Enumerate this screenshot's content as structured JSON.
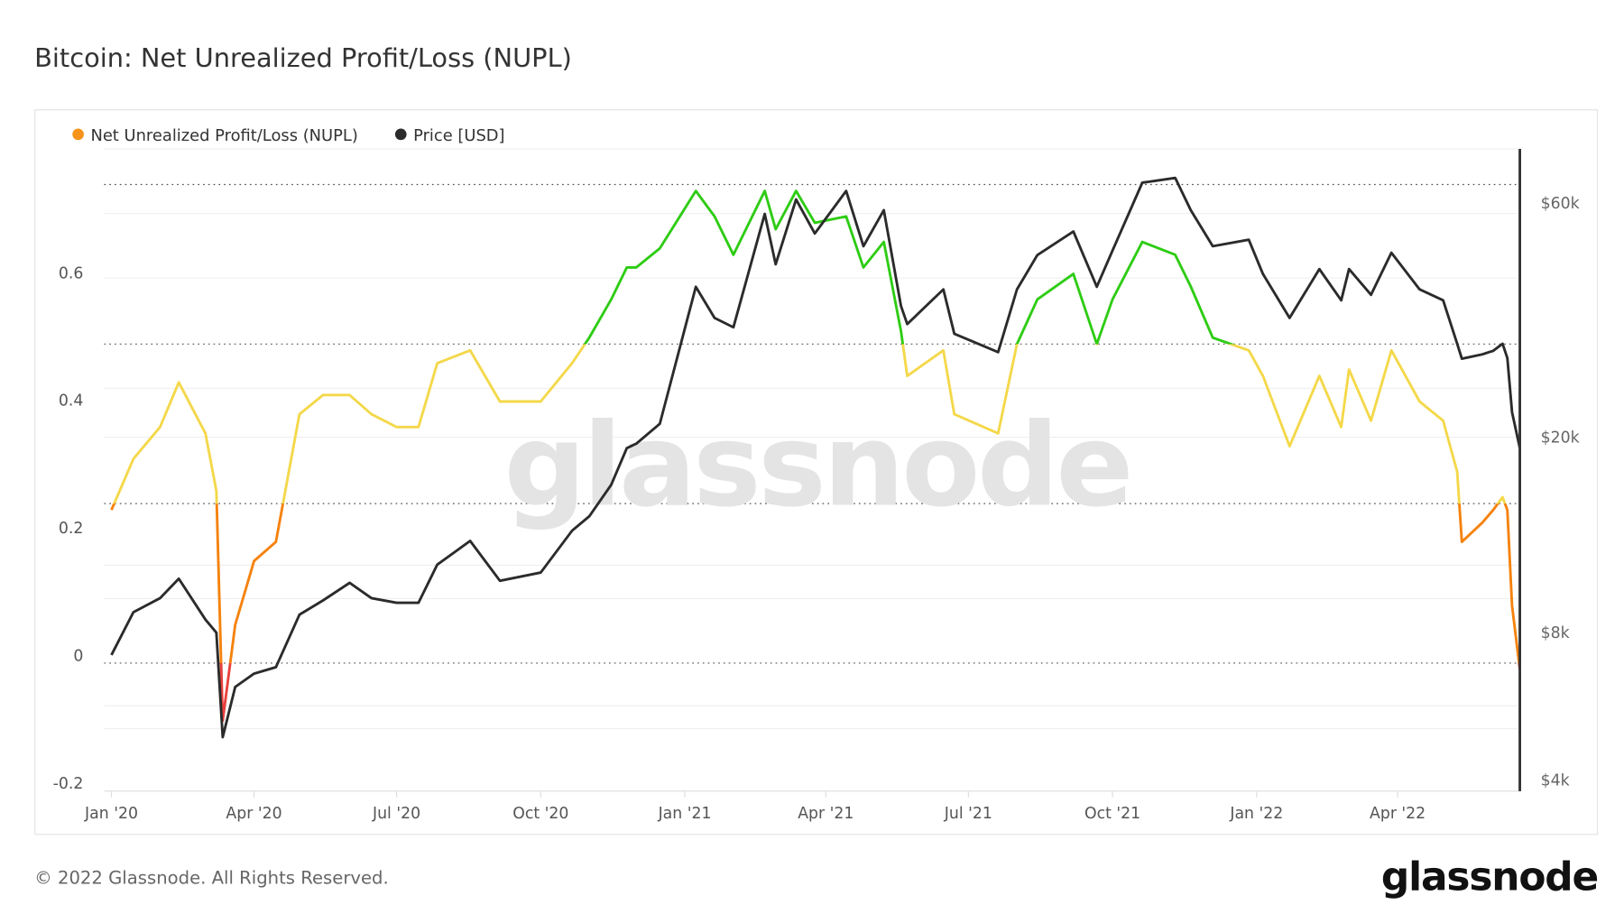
{
  "title": "Bitcoin: Net Unrealized Profit/Loss (NUPL)",
  "footer": {
    "copyright": "© 2022 Glassnode. All Rights Reserved.",
    "logo": "glassnode"
  },
  "watermark": "glassnode",
  "colors": {
    "red": "#e8413d",
    "orange": "#f5820d",
    "yellow": "#f4d84a",
    "green": "#2ecc14",
    "blue": "#2f6fe0",
    "price": "#2b2b2b",
    "legend_nupl": "#f7931a"
  },
  "chart_data": {
    "type": "line",
    "title": "Bitcoin: Net Unrealized Profit/Loss (NUPL)",
    "legend": [
      {
        "name": "Net Unrealized Profit/Loss (NUPL)"
      },
      {
        "name": "Price [USD]"
      }
    ],
    "legend_position": "top-left",
    "xlabel": "",
    "ylabel": "",
    "x_ticks": [
      "Jan '20",
      "Apr '20",
      "Jul '20",
      "Oct '20",
      "Jan '21",
      "Apr '21",
      "Jul '21",
      "Oct '21",
      "Jan '22",
      "Apr '22"
    ],
    "x_tick_dates": [
      "2020-01-01",
      "2020-04-01",
      "2020-07-01",
      "2020-10-01",
      "2021-01-01",
      "2021-04-01",
      "2021-07-01",
      "2021-10-01",
      "2022-01-01",
      "2022-04-01"
    ],
    "y_left": {
      "ticks": [
        -0.2,
        0,
        0.2,
        0.4,
        0.6
      ],
      "tick_labels": [
        "-0.2",
        "0",
        "0.2",
        "0.4",
        "0.6"
      ],
      "range": [
        -0.2,
        0.78
      ],
      "zone_lines": [
        0,
        0.25,
        0.5,
        0.75
      ]
    },
    "y_right": {
      "scale": "log",
      "ticks": [
        4000,
        8000,
        20000,
        60000
      ],
      "tick_labels": [
        "$4k",
        "$8k",
        "$20k",
        "$60k"
      ],
      "range": [
        4000,
        80000
      ]
    },
    "x": [
      "2020-01-01",
      "2020-01-15",
      "2020-02-01",
      "2020-02-13",
      "2020-03-01",
      "2020-03-08",
      "2020-03-12",
      "2020-03-20",
      "2020-04-01",
      "2020-04-15",
      "2020-04-30",
      "2020-05-15",
      "2020-06-01",
      "2020-06-15",
      "2020-07-01",
      "2020-07-15",
      "2020-07-27",
      "2020-08-17",
      "2020-09-05",
      "2020-10-01",
      "2020-10-21",
      "2020-11-01",
      "2020-11-15",
      "2020-11-25",
      "2020-12-01",
      "2020-12-16",
      "2021-01-08",
      "2021-01-20",
      "2021-02-01",
      "2021-02-21",
      "2021-02-28",
      "2021-03-13",
      "2021-03-25",
      "2021-04-14",
      "2021-04-25",
      "2021-05-08",
      "2021-05-19",
      "2021-05-23",
      "2021-06-15",
      "2021-06-22",
      "2021-07-20",
      "2021-08-01",
      "2021-08-14",
      "2021-09-06",
      "2021-09-21",
      "2021-10-01",
      "2021-10-20",
      "2021-11-10",
      "2021-11-20",
      "2021-12-04",
      "2021-12-27",
      "2022-01-05",
      "2022-01-22",
      "2022-02-10",
      "2022-02-24",
      "2022-03-01",
      "2022-03-15",
      "2022-03-28",
      "2022-04-15",
      "2022-04-30",
      "2022-05-09",
      "2022-05-12",
      "2022-05-25",
      "2022-06-01",
      "2022-06-07",
      "2022-06-10",
      "2022-06-13",
      "2022-06-18"
    ],
    "series": [
      {
        "name": "Net Unrealized Profit/Loss (NUPL)",
        "axis": "left",
        "values": [
          0.24,
          0.32,
          0.37,
          0.44,
          0.36,
          0.27,
          -0.09,
          0.06,
          0.16,
          0.19,
          0.39,
          0.42,
          0.42,
          0.39,
          0.37,
          0.37,
          0.47,
          0.49,
          0.41,
          0.41,
          0.47,
          0.51,
          0.57,
          0.62,
          0.62,
          0.65,
          0.74,
          0.7,
          0.64,
          0.74,
          0.68,
          0.74,
          0.69,
          0.7,
          0.62,
          0.66,
          0.52,
          0.45,
          0.49,
          0.39,
          0.36,
          0.5,
          0.57,
          0.61,
          0.5,
          0.57,
          0.66,
          0.64,
          0.59,
          0.51,
          0.49,
          0.45,
          0.34,
          0.45,
          0.37,
          0.46,
          0.38,
          0.49,
          0.41,
          0.38,
          0.3,
          0.19,
          0.22,
          0.24,
          0.26,
          0.24,
          0.09,
          -0.01
        ]
      },
      {
        "name": "Price [USD]",
        "axis": "right",
        "values": [
          7200,
          8800,
          9400,
          10300,
          8500,
          8000,
          4900,
          6200,
          6600,
          6800,
          8700,
          9300,
          10100,
          9400,
          9200,
          9200,
          11000,
          12300,
          10200,
          10600,
          12900,
          13800,
          16000,
          19000,
          19400,
          21300,
          40500,
          35000,
          33500,
          57000,
          45000,
          61000,
          52000,
          63500,
          49000,
          58000,
          37000,
          34000,
          40000,
          32500,
          29800,
          40000,
          47000,
          52500,
          40500,
          48000,
          66000,
          67500,
          58000,
          49000,
          50500,
          43000,
          35000,
          44000,
          38000,
          44000,
          39000,
          47500,
          40000,
          38000,
          31000,
          28900,
          29500,
          30000,
          31000,
          29000,
          22500,
          19000
        ]
      }
    ]
  }
}
